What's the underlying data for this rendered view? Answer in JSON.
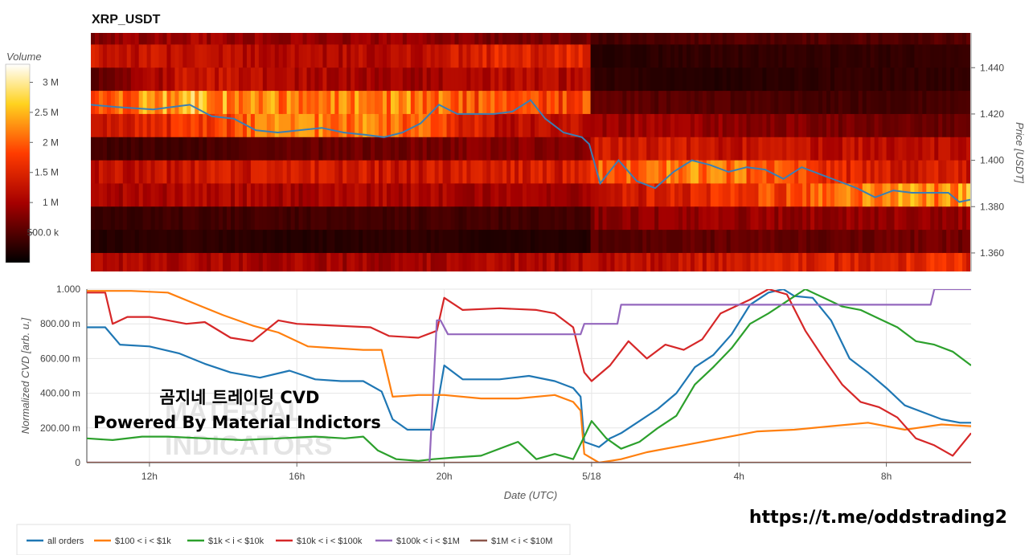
{
  "chart_data": [
    {
      "type": "heatmap",
      "title": "XRP_USDT",
      "ylabel": "Price [USDT]",
      "ylim": [
        1.352,
        1.455
      ],
      "yticks": [
        1.36,
        1.38,
        1.4,
        1.42,
        1.44
      ],
      "ytick_labels": [
        "1.360",
        "1.380",
        "1.400",
        "1.420",
        "1.440"
      ],
      "xlim_hours": [
        10.3,
        34.3
      ],
      "colorbar": {
        "title": "Volume",
        "range": [
          0,
          3300000
        ],
        "ticks": [
          500000,
          1000000,
          1500000,
          2000000,
          2500000,
          3000000
        ],
        "tick_labels": [
          "500.0 k",
          "1 M",
          "1.5 M",
          "2 M",
          "2.5 M",
          "3 M"
        ]
      },
      "price_bands": [
        1.455,
        1.445,
        1.435,
        1.425,
        1.415,
        1.405,
        1.395,
        1.385,
        1.375,
        1.365,
        1.355
      ],
      "band_volume_profile_M": [
        {
          "t": 10.3,
          "levels": [
            0.8,
            1.3,
            0.5,
            1.9,
            1.2,
            0.4,
            1.2,
            1.0,
            0.3,
            0.2,
            1.1
          ]
        },
        {
          "t": 13.0,
          "levels": [
            1.0,
            1.2,
            1.3,
            2.5,
            1.6,
            0.4,
            1.3,
            1.1,
            0.4,
            0.3,
            1.1
          ]
        },
        {
          "t": 16.0,
          "levels": [
            0.9,
            1.1,
            1.1,
            2.1,
            2.3,
            0.6,
            1.4,
            1.0,
            0.4,
            0.2,
            1.0
          ]
        },
        {
          "t": 19.0,
          "levels": [
            0.9,
            1.2,
            1.0,
            2.2,
            2.0,
            0.7,
            1.3,
            1.1,
            0.4,
            0.3,
            1.0
          ]
        },
        {
          "t": 21.5,
          "levels": [
            0.7,
            1.5,
            1.1,
            1.8,
            1.2,
            0.8,
            1.4,
            1.0,
            0.4,
            0.2,
            1.1
          ]
        },
        {
          "t": 23.9,
          "levels": [
            0.4,
            0.2,
            0.3,
            0.6,
            1.0,
            1.4,
            1.9,
            1.3,
            0.8,
            0.5,
            1.1
          ]
        },
        {
          "t": 27.0,
          "levels": [
            0.5,
            0.3,
            0.2,
            0.5,
            0.9,
            1.3,
            2.2,
            1.5,
            0.9,
            0.6,
            1.3
          ]
        },
        {
          "t": 31.0,
          "levels": [
            0.5,
            0.3,
            0.3,
            0.4,
            0.7,
            1.2,
            1.5,
            2.1,
            0.9,
            0.6,
            1.5
          ]
        },
        {
          "t": 34.3,
          "levels": [
            0.5,
            0.3,
            0.3,
            0.4,
            0.6,
            1.1,
            1.3,
            2.3,
            0.9,
            0.7,
            1.6
          ]
        }
      ],
      "price_series": {
        "x_hours": [
          10.3,
          11.0,
          12.0,
          13.0,
          13.6,
          14.2,
          14.8,
          15.4,
          16.0,
          16.6,
          17.2,
          17.8,
          18.3,
          18.8,
          19.3,
          19.8,
          20.3,
          20.8,
          21.3,
          21.8,
          22.3,
          22.7,
          23.2,
          23.7,
          23.9,
          24.2,
          24.7,
          25.2,
          25.7,
          26.2,
          26.7,
          27.2,
          27.7,
          28.2,
          28.7,
          29.2,
          29.7,
          30.2,
          30.7,
          31.2,
          31.7,
          32.2,
          32.7,
          33.2,
          33.7,
          34.0,
          34.3
        ],
        "y": [
          1.424,
          1.423,
          1.422,
          1.424,
          1.419,
          1.418,
          1.413,
          1.412,
          1.413,
          1.414,
          1.412,
          1.411,
          1.41,
          1.412,
          1.416,
          1.424,
          1.42,
          1.42,
          1.42,
          1.421,
          1.426,
          1.418,
          1.412,
          1.41,
          1.407,
          1.39,
          1.4,
          1.391,
          1.388,
          1.395,
          1.4,
          1.398,
          1.395,
          1.397,
          1.396,
          1.392,
          1.397,
          1.394,
          1.391,
          1.388,
          1.384,
          1.387,
          1.386,
          1.386,
          1.386,
          1.382,
          1.383
        ]
      }
    },
    {
      "type": "line",
      "ylabel": "Normalized CVD [arb. u.]",
      "xlabel": "Date (UTC)",
      "ylim": [
        0,
        1
      ],
      "yticks": [
        0,
        0.2,
        0.4,
        0.6,
        0.8,
        1.0
      ],
      "ytick_labels": [
        "0",
        "200.00 m",
        "400.00 m",
        "600.00 m",
        "800.00 m",
        "1.000"
      ],
      "xlim_hours": [
        10.3,
        34.3
      ],
      "xticks_hours": [
        12,
        16,
        20,
        24,
        28,
        32
      ],
      "xtick_labels": [
        "12h",
        "16h",
        "20h",
        "5/18",
        "4h",
        "8h"
      ],
      "series": [
        {
          "name": "all orders",
          "color": "#1f77b4",
          "x": [
            10.3,
            10.8,
            11.2,
            12.0,
            12.8,
            13.5,
            14.2,
            15.0,
            15.8,
            16.5,
            17.2,
            17.8,
            18.3,
            18.6,
            19.0,
            19.6,
            19.7,
            20.0,
            20.5,
            21.5,
            22.3,
            23.0,
            23.5,
            23.7,
            23.8,
            24.2,
            24.5,
            24.8,
            25.3,
            25.8,
            26.3,
            26.8,
            27.3,
            27.8,
            28.3,
            28.8,
            29.2,
            29.5,
            30.0,
            30.5,
            31.0,
            31.5,
            32.0,
            32.5,
            33.0,
            33.5,
            34.0,
            34.3
          ],
          "y": [
            0.78,
            0.78,
            0.68,
            0.67,
            0.63,
            0.57,
            0.52,
            0.49,
            0.53,
            0.48,
            0.47,
            0.47,
            0.41,
            0.25,
            0.19,
            0.19,
            0.19,
            0.56,
            0.48,
            0.48,
            0.5,
            0.47,
            0.43,
            0.38,
            0.12,
            0.09,
            0.14,
            0.17,
            0.24,
            0.31,
            0.4,
            0.55,
            0.62,
            0.74,
            0.91,
            0.98,
            1.0,
            0.96,
            0.95,
            0.82,
            0.6,
            0.52,
            0.43,
            0.33,
            0.29,
            0.25,
            0.23,
            0.23
          ]
        },
        {
          "name": "$100 < i < $1k",
          "color": "#ff7f0e",
          "x": [
            10.3,
            11.5,
            12.5,
            13.3,
            14.0,
            14.8,
            15.5,
            16.3,
            17.0,
            17.8,
            18.3,
            18.6,
            19.3,
            20.0,
            21.0,
            22.0,
            23.0,
            23.5,
            23.7,
            23.8,
            24.2,
            24.8,
            25.5,
            26.5,
            27.5,
            28.5,
            29.5,
            30.5,
            31.5,
            32.5,
            33.5,
            34.3
          ],
          "y": [
            0.99,
            0.99,
            0.98,
            0.91,
            0.85,
            0.79,
            0.75,
            0.67,
            0.66,
            0.65,
            0.65,
            0.38,
            0.39,
            0.39,
            0.37,
            0.37,
            0.39,
            0.35,
            0.3,
            0.05,
            0.0,
            0.02,
            0.06,
            0.1,
            0.14,
            0.18,
            0.19,
            0.21,
            0.23,
            0.19,
            0.22,
            0.21
          ]
        },
        {
          "name": "$1k < i < $10k",
          "color": "#2ca02c",
          "x": [
            10.3,
            11.0,
            11.8,
            12.5,
            13.5,
            14.5,
            15.5,
            16.5,
            17.3,
            17.8,
            18.2,
            18.7,
            19.3,
            19.7,
            20.3,
            21.0,
            22.0,
            22.5,
            23.0,
            23.5,
            23.8,
            24.0,
            24.4,
            24.8,
            25.3,
            25.8,
            26.3,
            26.8,
            27.3,
            27.8,
            28.3,
            28.8,
            29.3,
            29.8,
            30.3,
            30.8,
            31.3,
            31.8,
            32.3,
            32.8,
            33.3,
            33.8,
            34.3
          ],
          "y": [
            0.14,
            0.13,
            0.15,
            0.15,
            0.14,
            0.13,
            0.14,
            0.15,
            0.14,
            0.15,
            0.07,
            0.02,
            0.01,
            0.02,
            0.03,
            0.04,
            0.12,
            0.02,
            0.05,
            0.02,
            0.15,
            0.24,
            0.14,
            0.08,
            0.12,
            0.2,
            0.27,
            0.45,
            0.55,
            0.66,
            0.8,
            0.86,
            0.93,
            1.0,
            0.95,
            0.9,
            0.88,
            0.83,
            0.78,
            0.7,
            0.68,
            0.64,
            0.56
          ]
        },
        {
          "name": "$10k < i < $100k",
          "color": "#d62728",
          "x": [
            10.3,
            10.8,
            11.0,
            11.4,
            12.0,
            13.0,
            13.5,
            14.2,
            14.8,
            15.5,
            16.0,
            17.0,
            18.0,
            18.5,
            19.3,
            19.8,
            20.0,
            20.5,
            21.5,
            22.5,
            23.0,
            23.5,
            23.8,
            24.0,
            24.5,
            25.0,
            25.5,
            26.0,
            26.5,
            27.0,
            27.5,
            28.3,
            28.8,
            29.3,
            29.8,
            30.3,
            30.8,
            31.3,
            31.8,
            32.3,
            32.8,
            33.3,
            33.8,
            34.3
          ],
          "y": [
            0.98,
            0.98,
            0.8,
            0.84,
            0.84,
            0.8,
            0.81,
            0.72,
            0.7,
            0.82,
            0.8,
            0.79,
            0.78,
            0.73,
            0.72,
            0.76,
            0.95,
            0.88,
            0.89,
            0.88,
            0.86,
            0.78,
            0.52,
            0.47,
            0.56,
            0.7,
            0.6,
            0.68,
            0.65,
            0.71,
            0.86,
            0.94,
            1.0,
            0.97,
            0.76,
            0.6,
            0.45,
            0.35,
            0.32,
            0.26,
            0.14,
            0.1,
            0.04,
            0.17
          ]
        },
        {
          "name": "$100k < i < $1M",
          "color": "#9467bd",
          "x": [
            10.3,
            19.6,
            19.8,
            19.9,
            20.1,
            23.7,
            23.8,
            24.7,
            24.8,
            30.0,
            30.1,
            33.2,
            33.3,
            34.3
          ],
          "y": [
            0.0,
            0.0,
            0.82,
            0.82,
            0.74,
            0.74,
            0.8,
            0.8,
            0.91,
            0.91,
            0.91,
            0.91,
            1.0,
            1.0
          ]
        },
        {
          "name": "$1M < i < $10M",
          "color": "#8c564b",
          "x": [
            10.3,
            34.3
          ],
          "y": [
            0.0,
            0.0
          ]
        }
      ]
    }
  ],
  "legend": {
    "placement": "bottom-left",
    "items": [
      "all orders",
      "$100 < i < $1k",
      "$1k < i < $10k",
      "$10k < i < $100k",
      "$100k < i < $1M",
      "$1M < i < $10M"
    ]
  },
  "watermark": {
    "line1": "곰지네 트레이딩 CVD",
    "line2": "Powered By Material Indictors",
    "logo_line1": "MATERIAL",
    "logo_line2": "INDICATORS",
    "link": "https://t.me/oddstrading2"
  }
}
